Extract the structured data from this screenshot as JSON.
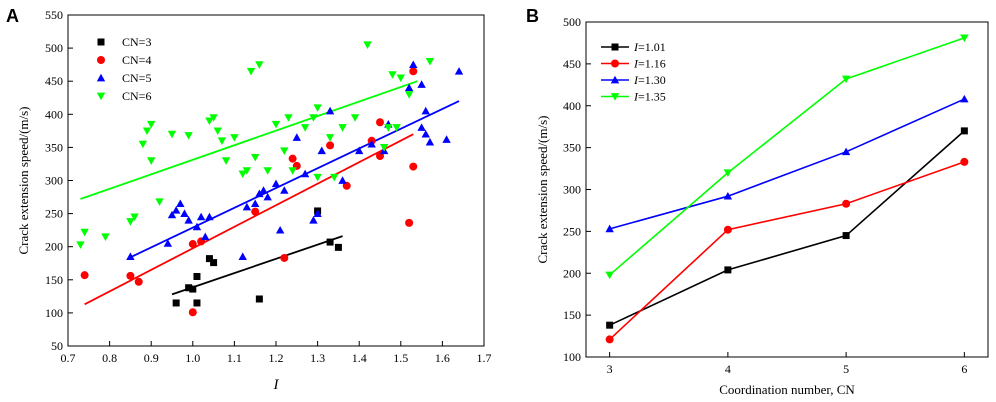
{
  "chart_data": [
    {
      "panel_label": "A",
      "type": "scatter",
      "xlabel": "I",
      "ylabel": "Crack extension speed/(m/s)",
      "xlim": [
        0.7,
        1.7
      ],
      "ylim": [
        50,
        550
      ],
      "xticks": [
        "0.7",
        "0.8",
        "0.9",
        "1.0",
        "1.1",
        "1.2",
        "1.3",
        "1.4",
        "1.5",
        "1.6",
        "1.7"
      ],
      "yticks": [
        "50",
        "100",
        "150",
        "200",
        "250",
        "300",
        "350",
        "400",
        "450",
        "500",
        "550"
      ],
      "legend_position": "top-left",
      "series": [
        {
          "name": "CN=3",
          "color": "#000000",
          "marker": "square",
          "points": [
            [
              0.96,
              115
            ],
            [
              0.99,
              138
            ],
            [
              1.0,
              136
            ],
            [
              1.01,
              155
            ],
            [
              1.01,
              115
            ],
            [
              1.04,
              182
            ],
            [
              1.05,
              176
            ],
            [
              1.16,
              121
            ],
            [
              1.3,
              254
            ],
            [
              1.33,
              207
            ],
            [
              1.35,
              199
            ]
          ],
          "fit": [
            [
              0.95,
              128
            ],
            [
              1.36,
              216
            ]
          ]
        },
        {
          "name": "CN=4",
          "color": "#ff0000",
          "marker": "circle",
          "points": [
            [
              0.74,
              157
            ],
            [
              0.85,
              156
            ],
            [
              0.87,
              147
            ],
            [
              1.0,
              204
            ],
            [
              1.0,
              101
            ],
            [
              1.02,
              208
            ],
            [
              1.15,
              253
            ],
            [
              1.22,
              183
            ],
            [
              1.24,
              333
            ],
            [
              1.25,
              322
            ],
            [
              1.33,
              353
            ],
            [
              1.37,
              292
            ],
            [
              1.43,
              360
            ],
            [
              1.45,
              388
            ],
            [
              1.45,
              337
            ],
            [
              1.52,
              236
            ],
            [
              1.53,
              465
            ],
            [
              1.53,
              321
            ]
          ],
          "fit": [
            [
              0.74,
              113
            ],
            [
              1.53,
              370
            ]
          ]
        },
        {
          "name": "CN=5",
          "color": "#0000ff",
          "marker": "triangle-up",
          "points": [
            [
              0.85,
              185
            ],
            [
              0.94,
              205
            ],
            [
              0.95,
              248
            ],
            [
              0.96,
              255
            ],
            [
              0.97,
              265
            ],
            [
              0.98,
              250
            ],
            [
              0.99,
              240
            ],
            [
              1.01,
              230
            ],
            [
              1.02,
              245
            ],
            [
              1.03,
              215
            ],
            [
              1.04,
              245
            ],
            [
              1.12,
              185
            ],
            [
              1.13,
              260
            ],
            [
              1.15,
              265
            ],
            [
              1.16,
              280
            ],
            [
              1.17,
              285
            ],
            [
              1.18,
              275
            ],
            [
              1.2,
              295
            ],
            [
              1.21,
              225
            ],
            [
              1.22,
              285
            ],
            [
              1.25,
              365
            ],
            [
              1.27,
              310
            ],
            [
              1.29,
              240
            ],
            [
              1.3,
              250
            ],
            [
              1.31,
              345
            ],
            [
              1.33,
              405
            ],
            [
              1.36,
              300
            ],
            [
              1.4,
              345
            ],
            [
              1.43,
              355
            ],
            [
              1.46,
              345
            ],
            [
              1.47,
              385
            ],
            [
              1.52,
              440
            ],
            [
              1.53,
              475
            ],
            [
              1.55,
              380
            ],
            [
              1.55,
              445
            ],
            [
              1.56,
              405
            ],
            [
              1.56,
              370
            ],
            [
              1.57,
              358
            ],
            [
              1.61,
              362
            ],
            [
              1.64,
              465
            ]
          ],
          "fit": [
            [
              0.85,
              184
            ],
            [
              1.64,
              420
            ]
          ]
        },
        {
          "name": "CN=6",
          "color": "#00ff00",
          "marker": "triangle-down",
          "points": [
            [
              0.73,
              203
            ],
            [
              0.74,
              222
            ],
            [
              0.79,
              215
            ],
            [
              0.85,
              238
            ],
            [
              0.86,
              245
            ],
            [
              0.88,
              355
            ],
            [
              0.89,
              375
            ],
            [
              0.9,
              385
            ],
            [
              0.9,
              330
            ],
            [
              0.92,
              268
            ],
            [
              0.95,
              370
            ],
            [
              0.99,
              368
            ],
            [
              1.04,
              390
            ],
            [
              1.05,
              395
            ],
            [
              1.06,
              375
            ],
            [
              1.07,
              360
            ],
            [
              1.08,
              330
            ],
            [
              1.1,
              365
            ],
            [
              1.12,
              310
            ],
            [
              1.13,
              315
            ],
            [
              1.14,
              465
            ],
            [
              1.15,
              335
            ],
            [
              1.16,
              475
            ],
            [
              1.18,
              315
            ],
            [
              1.2,
              385
            ],
            [
              1.22,
              345
            ],
            [
              1.23,
              395
            ],
            [
              1.24,
              315
            ],
            [
              1.27,
              380
            ],
            [
              1.29,
              395
            ],
            [
              1.3,
              410
            ],
            [
              1.3,
              305
            ],
            [
              1.33,
              365
            ],
            [
              1.34,
              305
            ],
            [
              1.36,
              380
            ],
            [
              1.39,
              395
            ],
            [
              1.42,
              505
            ],
            [
              1.46,
              350
            ],
            [
              1.47,
              380
            ],
            [
              1.48,
              460
            ],
            [
              1.49,
              380
            ],
            [
              1.5,
              455
            ],
            [
              1.52,
              430
            ],
            [
              1.57,
              480
            ]
          ],
          "fit": [
            [
              0.73,
              272
            ],
            [
              1.54,
              450
            ]
          ]
        }
      ]
    },
    {
      "panel_label": "B",
      "type": "line",
      "xlabel": "Coordination number, CN",
      "ylabel": "Crack extension speed/(m/s)",
      "xlim": [
        2.8,
        6.2
      ],
      "ylim": [
        100,
        500
      ],
      "x": [
        3,
        4,
        5,
        6
      ],
      "xticks": [
        "3",
        "4",
        "5",
        "6"
      ],
      "yticks": [
        "100",
        "150",
        "200",
        "250",
        "300",
        "350",
        "400",
        "450",
        "500"
      ],
      "legend_position": "top-left",
      "series": [
        {
          "prefix": "I",
          "name": "=1.01",
          "color": "#000000",
          "marker": "square",
          "values": [
            138,
            204,
            245,
            370
          ]
        },
        {
          "prefix": "I",
          "name": "=1.16",
          "color": "#ff0000",
          "marker": "circle",
          "values": [
            121,
            252,
            283,
            333
          ]
        },
        {
          "prefix": "I",
          "name": "=1.30",
          "color": "#0000ff",
          "marker": "triangle-up",
          "values": [
            253,
            292,
            345,
            408
          ]
        },
        {
          "prefix": "I",
          "name": "=1.35",
          "color": "#00ff00",
          "marker": "triangle-down",
          "values": [
            198,
            320,
            432,
            481
          ]
        }
      ]
    }
  ]
}
